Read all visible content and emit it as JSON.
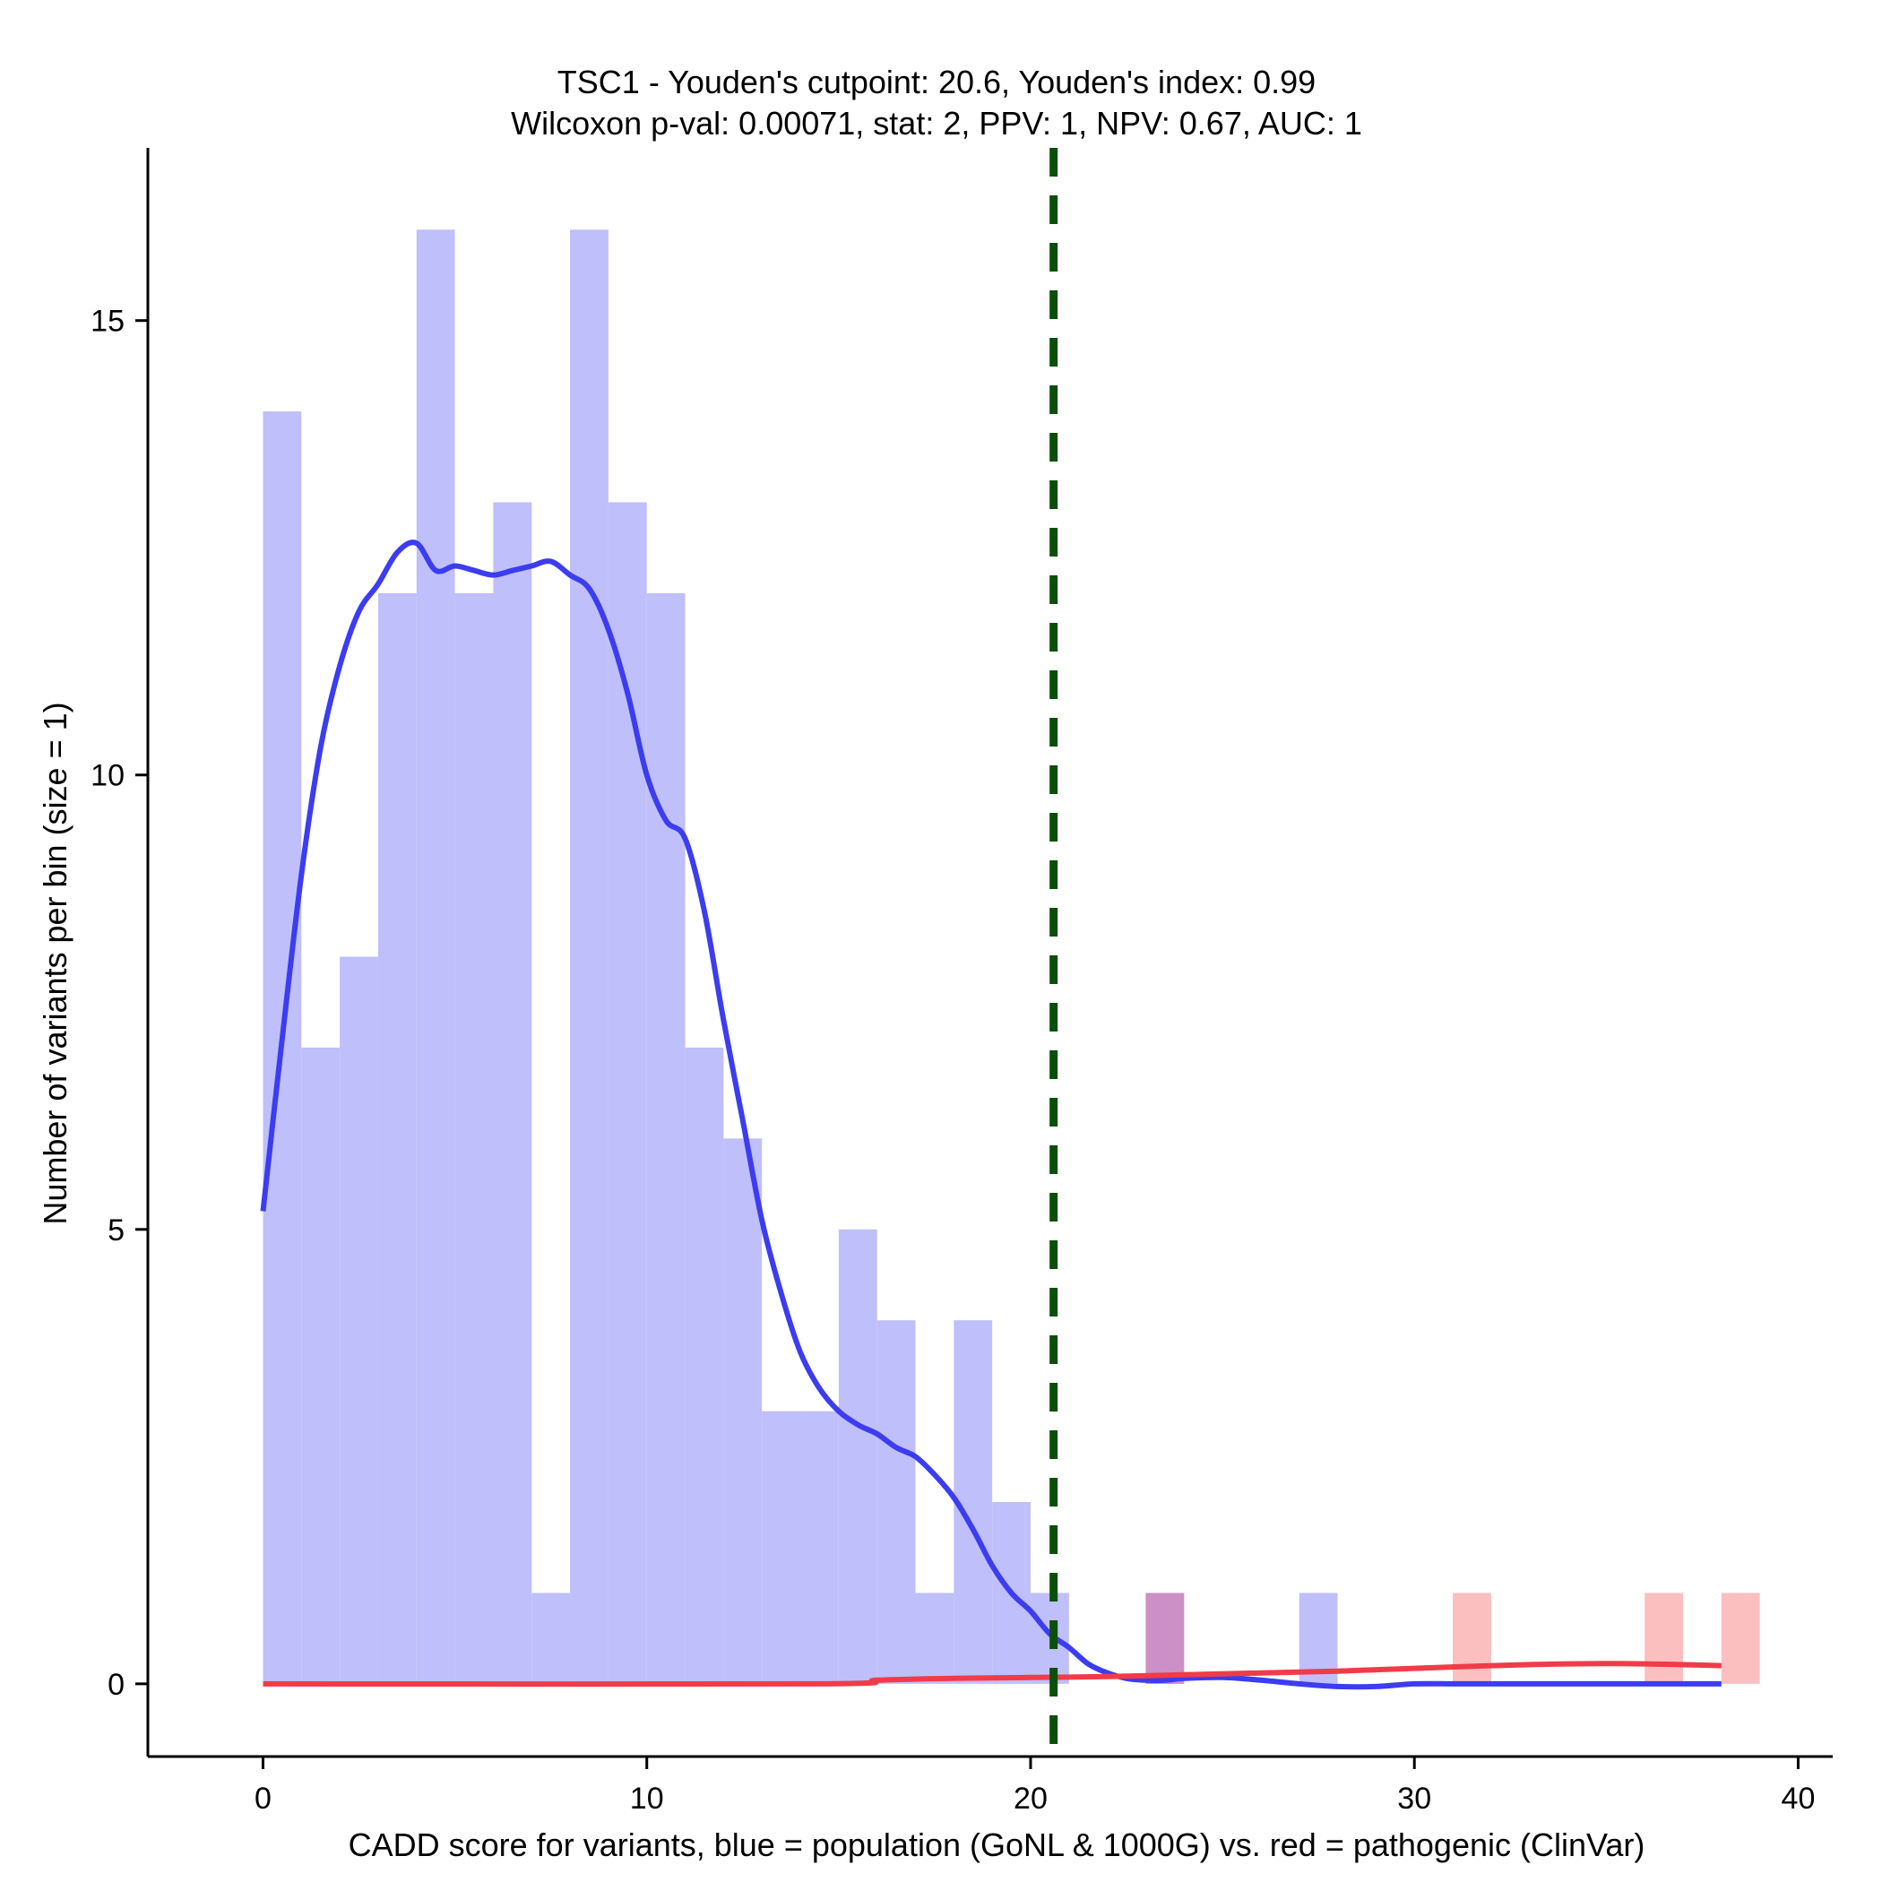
{
  "chart_data": {
    "type": "histogram",
    "title_line1": "TSC1 - Youden's cutpoint: 20.6, Youden's index: 0.99",
    "title_line2": "Wilcoxon p-val: 0.00071, stat: 2, PPV: 1, NPV: 0.67, AUC: 1",
    "xlabel": "CADD score for variants, blue = population (GoNL & 1000G) vs. red = pathogenic (ClinVar)",
    "ylabel": "Number of variants per bin (size = 1)",
    "xlim": [
      -3,
      40.9
    ],
    "ylim": [
      -0.8,
      16.9
    ],
    "xticks": [
      0,
      10,
      20,
      30,
      40
    ],
    "yticks": [
      0,
      5,
      10,
      15
    ],
    "bin_size": 1,
    "cutpoint": 20.6,
    "colors": {
      "population_bar": "#bfbffb",
      "pathogenic_bar": "#fcbfc0",
      "overlap_bar": "#cc8fc6",
      "population_density": "#3c3cf0",
      "pathogenic_density": "#f03c48",
      "cutpoint_line": "#0a4f0a"
    },
    "series": [
      {
        "name": "population (GoNL & 1000G)",
        "bins": [
          {
            "x0": 0,
            "count": 14
          },
          {
            "x0": 1,
            "count": 7
          },
          {
            "x0": 2,
            "count": 8
          },
          {
            "x0": 3,
            "count": 12
          },
          {
            "x0": 4,
            "count": 16
          },
          {
            "x0": 5,
            "count": 12
          },
          {
            "x0": 6,
            "count": 13
          },
          {
            "x0": 7,
            "count": 1
          },
          {
            "x0": 8,
            "count": 16
          },
          {
            "x0": 9,
            "count": 13
          },
          {
            "x0": 10,
            "count": 12
          },
          {
            "x0": 11,
            "count": 7
          },
          {
            "x0": 12,
            "count": 6
          },
          {
            "x0": 13,
            "count": 3
          },
          {
            "x0": 14,
            "count": 3
          },
          {
            "x0": 15,
            "count": 5
          },
          {
            "x0": 16,
            "count": 4
          },
          {
            "x0": 17,
            "count": 1
          },
          {
            "x0": 18,
            "count": 4
          },
          {
            "x0": 19,
            "count": 2
          },
          {
            "x0": 20,
            "count": 1
          },
          {
            "x0": 23,
            "count": 1
          },
          {
            "x0": 27,
            "count": 1
          }
        ],
        "density": [
          [
            0,
            5.2
          ],
          [
            0.5,
            7.1
          ],
          [
            1,
            8.9
          ],
          [
            1.5,
            10.3
          ],
          [
            2,
            11.2
          ],
          [
            2.5,
            11.8
          ],
          [
            3,
            12.1
          ],
          [
            3.5,
            12.45
          ],
          [
            4,
            12.55
          ],
          [
            4.5,
            12.25
          ],
          [
            5,
            12.3
          ],
          [
            5.5,
            12.25
          ],
          [
            6,
            12.2
          ],
          [
            6.5,
            12.25
          ],
          [
            7,
            12.3
          ],
          [
            7.5,
            12.35
          ],
          [
            8,
            12.2
          ],
          [
            8.5,
            12.05
          ],
          [
            9,
            11.6
          ],
          [
            9.5,
            10.9
          ],
          [
            10,
            10.0
          ],
          [
            10.5,
            9.5
          ],
          [
            11,
            9.3
          ],
          [
            11.5,
            8.5
          ],
          [
            12,
            7.3
          ],
          [
            12.5,
            6.2
          ],
          [
            13,
            5.1
          ],
          [
            13.5,
            4.3
          ],
          [
            14,
            3.65
          ],
          [
            14.5,
            3.25
          ],
          [
            15,
            3.0
          ],
          [
            15.5,
            2.85
          ],
          [
            16,
            2.75
          ],
          [
            16.5,
            2.6
          ],
          [
            17,
            2.5
          ],
          [
            17.5,
            2.3
          ],
          [
            18,
            2.05
          ],
          [
            18.5,
            1.7
          ],
          [
            19,
            1.3
          ],
          [
            19.5,
            1.0
          ],
          [
            20,
            0.8
          ],
          [
            20.5,
            0.55
          ],
          [
            21,
            0.4
          ],
          [
            21.5,
            0.22
          ],
          [
            22,
            0.12
          ],
          [
            22.5,
            0.06
          ],
          [
            23,
            0.04
          ],
          [
            23.5,
            0.04
          ],
          [
            24,
            0.06
          ],
          [
            25,
            0.07
          ],
          [
            26,
            0.04
          ],
          [
            27,
            0.0
          ],
          [
            28,
            -0.03
          ],
          [
            29,
            -0.03
          ],
          [
            30,
            0.0
          ],
          [
            31,
            0.0
          ],
          [
            32,
            0.0
          ],
          [
            33,
            0.0
          ],
          [
            34,
            0.0
          ],
          [
            35,
            0.0
          ],
          [
            36,
            0.0
          ],
          [
            37,
            0.0
          ],
          [
            38,
            0.0
          ]
        ]
      },
      {
        "name": "pathogenic (ClinVar)",
        "bins": [
          {
            "x0": 23,
            "count": 1
          },
          {
            "x0": 31,
            "count": 1
          },
          {
            "x0": 36,
            "count": 1
          },
          {
            "x0": 38,
            "count": 1
          }
        ],
        "density": [
          [
            0,
            0.0
          ],
          [
            14.4,
            0.0
          ],
          [
            16,
            0.04
          ],
          [
            18,
            0.06
          ],
          [
            20,
            0.07
          ],
          [
            22,
            0.08
          ],
          [
            24,
            0.1
          ],
          [
            26,
            0.12
          ],
          [
            28,
            0.14
          ],
          [
            30,
            0.17
          ],
          [
            32,
            0.2
          ],
          [
            34,
            0.22
          ],
          [
            36,
            0.22
          ],
          [
            38,
            0.2
          ]
        ]
      }
    ]
  }
}
